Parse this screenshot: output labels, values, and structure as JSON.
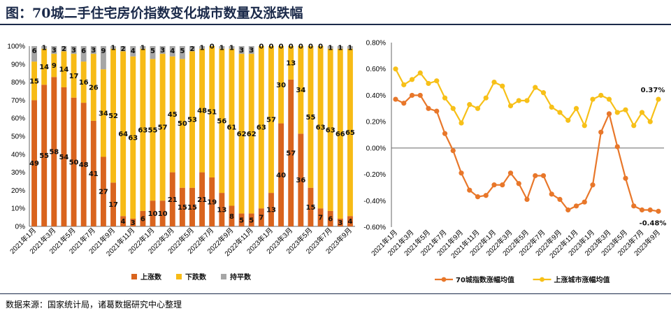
{
  "header": {
    "title": "图：70城二手住宅房价指数变化城市数量及涨跌幅"
  },
  "footer": {
    "source": "数据来源：国家统计局，诸葛数据研究中心整理"
  },
  "chart_data": [
    {
      "type": "bar",
      "stacked": true,
      "categories": [
        "2021年1月",
        "2021年2月",
        "2021年3月",
        "2021年4月",
        "2021年5月",
        "2021年6月",
        "2021年7月",
        "2021年8月",
        "2021年9月",
        "2021年10月",
        "2021年11月",
        "2021年12月",
        "2022年1月",
        "2022年2月",
        "2022年3月",
        "2022年4月",
        "2022年5月",
        "2022年6月",
        "2022年7月",
        "2022年8月",
        "2022年9月",
        "2022年10月",
        "2022年11月",
        "2022年12月",
        "2023年1月",
        "2023年2月",
        "2023年3月",
        "2023年4月",
        "2023年5月",
        "2023年6月",
        "2023年7月",
        "2023年8月",
        "2023年9月"
      ],
      "xticks": [
        "2021年1月",
        "2021年3月",
        "2021年5月",
        "2021年7月",
        "2021年9月",
        "2021年11月",
        "2022年1月",
        "2022年3月",
        "2022年5月",
        "2022年7月",
        "2022年9月",
        "2022年11月",
        "2023年1月",
        "2023年3月",
        "2023年5月",
        "2023年7月",
        "2023年9月"
      ],
      "yticks": [
        "0%",
        "10%",
        "20%",
        "30%",
        "40%",
        "50%",
        "60%",
        "70%",
        "80%",
        "90%",
        "100%"
      ],
      "ylim": [
        0,
        100
      ],
      "series": [
        {
          "name": "上涨数",
          "color": "#d9641e",
          "values": [
            49,
            55,
            58,
            54,
            50,
            48,
            41,
            27,
            17,
            4,
            3,
            6,
            10,
            10,
            21,
            15,
            15,
            21,
            19,
            13,
            8,
            5,
            5,
            7,
            13,
            40,
            57,
            36,
            15,
            7,
            6,
            3,
            4
          ]
        },
        {
          "name": "下跌数",
          "color": "#f7bb16",
          "values": [
            15,
            14,
            9,
            14,
            17,
            16,
            26,
            34,
            52,
            64,
            63,
            63,
            55,
            57,
            45,
            50,
            53,
            48,
            51,
            56,
            61,
            62,
            62,
            63,
            57,
            30,
            13,
            34,
            55,
            63,
            63,
            66,
            65
          ]
        },
        {
          "name": "持平数",
          "color": "#a6a6a6",
          "values": [
            6,
            1,
            3,
            2,
            3,
            6,
            3,
            9,
            1,
            2,
            4,
            1,
            5,
            3,
            4,
            5,
            2,
            1,
            0,
            1,
            1,
            3,
            3,
            0,
            0,
            0,
            0,
            0,
            0,
            0,
            1,
            1,
            1
          ]
        }
      ]
    },
    {
      "type": "line",
      "x": [
        "2021年1月",
        "2021年2月",
        "2021年3月",
        "2021年4月",
        "2021年5月",
        "2021年6月",
        "2021年7月",
        "2021年8月",
        "2021年9月",
        "2021年10月",
        "2021年11月",
        "2021年12月",
        "2022年1月",
        "2022年2月",
        "2022年3月",
        "2022年4月",
        "2022年5月",
        "2022年6月",
        "2022年7月",
        "2022年8月",
        "2022年9月",
        "2022年10月",
        "2022年11月",
        "2022年12月",
        "2023年1月",
        "2023年2月",
        "2023年3月",
        "2023年4月",
        "2023年5月",
        "2023年6月",
        "2023年7月",
        "2023年8月",
        "2023年9月"
      ],
      "xticks": [
        "2021年1月",
        "2021年3月",
        "2021年5月",
        "2021年7月",
        "2021年9月",
        "2021年11月",
        "2022年1月",
        "2022年3月",
        "2022年5月",
        "2022年7月",
        "2022年9月",
        "2022年11月",
        "2023年1月",
        "2023年3月",
        "2023年5月",
        "2023年7月",
        "2023年9月"
      ],
      "yticks": [
        "0.80%",
        "0.60%",
        "0.40%",
        "0.20%",
        "0.00%",
        "-0.20%",
        "-0.40%",
        "-0.60%"
      ],
      "ylim": [
        -0.6,
        0.8
      ],
      "series": [
        {
          "name": "70城指数涨幅均值",
          "color": "#e8772a",
          "values": [
            0.37,
            0.34,
            0.4,
            0.4,
            0.3,
            0.28,
            0.11,
            -0.02,
            -0.19,
            -0.32,
            -0.37,
            -0.36,
            -0.28,
            -0.28,
            -0.19,
            -0.27,
            -0.39,
            -0.21,
            -0.21,
            -0.35,
            -0.39,
            -0.47,
            -0.44,
            -0.41,
            -0.28,
            0.12,
            0.26,
            0.01,
            -0.23,
            -0.44,
            -0.47,
            -0.47,
            -0.48
          ]
        },
        {
          "name": "上涨城市涨幅均值",
          "color": "#f7c018",
          "values": [
            0.6,
            0.48,
            0.52,
            0.57,
            0.49,
            0.51,
            0.38,
            0.3,
            0.19,
            0.33,
            0.3,
            0.38,
            0.5,
            0.47,
            0.32,
            0.36,
            0.36,
            0.46,
            0.42,
            0.31,
            0.27,
            0.21,
            0.3,
            0.17,
            0.37,
            0.4,
            0.37,
            0.27,
            0.29,
            0.17,
            0.27,
            0.2,
            0.37
          ]
        }
      ],
      "annotations": [
        {
          "text": "0.37%",
          "series": 1,
          "index": 32
        },
        {
          "text": "-0.48%",
          "series": 0,
          "index": 32
        }
      ]
    }
  ]
}
